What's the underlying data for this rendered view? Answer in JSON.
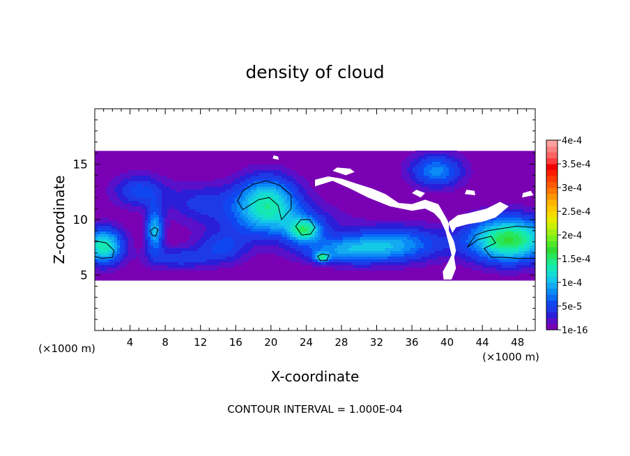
{
  "chart_data": {
    "type": "heatmap",
    "title": "density of cloud",
    "xlabel": "X-coordinate",
    "ylabel": "Z-coordinate",
    "x_unit": "(×1000 m)",
    "z_unit": "(×1000 m)",
    "xlim": [
      0,
      50
    ],
    "ylim": [
      0,
      20
    ],
    "x_ticks": [
      4,
      8,
      12,
      16,
      20,
      24,
      28,
      32,
      36,
      40,
      44,
      48
    ],
    "y_ticks": [
      5,
      10,
      15
    ],
    "footer": "CONTOUR INTERVAL = 1.000E-04",
    "colorbar": {
      "labels": [
        "1e-16",
        "5e-5",
        "1e-4",
        "1.5e-4",
        "2e-4",
        "2.5e-4",
        "3e-4",
        "3.5e-4",
        "4e-4"
      ],
      "min": 0,
      "max": 0.0004,
      "bins": [
        {
          "from": 0,
          "to": 1.25e-05,
          "color": "#7a00b4"
        },
        {
          "from": 1.25e-05,
          "to": 2.5e-05,
          "color": "#5a10c8"
        },
        {
          "from": 2.5e-05,
          "to": 3.75e-05,
          "color": "#2a1ed8"
        },
        {
          "from": 3.75e-05,
          "to": 5e-05,
          "color": "#1e3ae6"
        },
        {
          "from": 5e-05,
          "to": 6.25e-05,
          "color": "#1046f0"
        },
        {
          "from": 6.25e-05,
          "to": 7.5e-05,
          "color": "#0a6cf5"
        },
        {
          "from": 7.5e-05,
          "to": 8.75e-05,
          "color": "#0a8cf6"
        },
        {
          "from": 8.75e-05,
          "to": 0.0001,
          "color": "#14aaf2"
        },
        {
          "from": 0.0001,
          "to": 0.0001125,
          "color": "#14c8e8"
        },
        {
          "from": 0.0001125,
          "to": 0.000125,
          "color": "#14dcd2"
        },
        {
          "from": 0.000125,
          "to": 0.0001375,
          "color": "#14e8b4"
        },
        {
          "from": 0.0001375,
          "to": 0.00015,
          "color": "#1eeb8c"
        },
        {
          "from": 0.00015,
          "to": 0.0001625,
          "color": "#28e65a"
        },
        {
          "from": 0.0001625,
          "to": 0.000175,
          "color": "#32dc32"
        },
        {
          "from": 0.000175,
          "to": 0.0001875,
          "color": "#50e628"
        },
        {
          "from": 0.0001875,
          "to": 0.0002,
          "color": "#78f01e"
        },
        {
          "from": 0.0002,
          "to": 0.0002125,
          "color": "#a0f014"
        },
        {
          "from": 0.0002125,
          "to": 0.000225,
          "color": "#c8f00a"
        },
        {
          "from": 0.000225,
          "to": 0.0002375,
          "color": "#e6eb00"
        },
        {
          "from": 0.0002375,
          "to": 0.00025,
          "color": "#f5dc00"
        },
        {
          "from": 0.00025,
          "to": 0.0002625,
          "color": "#ffc800"
        },
        {
          "from": 0.0002625,
          "to": 0.000275,
          "color": "#ffb400"
        },
        {
          "from": 0.000275,
          "to": 0.0002875,
          "color": "#ff9600"
        },
        {
          "from": 0.0002875,
          "to": 0.0003,
          "color": "#ff7800"
        },
        {
          "from": 0.0003,
          "to": 0.0003125,
          "color": "#ff5a00"
        },
        {
          "from": 0.0003125,
          "to": 0.000325,
          "color": "#ff3c00"
        },
        {
          "from": 0.000325,
          "to": 0.0003375,
          "color": "#ff1e00"
        },
        {
          "from": 0.0003375,
          "to": 0.00035,
          "color": "#f00000"
        },
        {
          "from": 0.00035,
          "to": 0.0003625,
          "color": "#ff3c3c"
        },
        {
          "from": 0.0003625,
          "to": 0.000375,
          "color": "#ff6464"
        },
        {
          "from": 0.000375,
          "to": 0.0003875,
          "color": "#ff8282"
        },
        {
          "from": 0.0003875,
          "to": 0.0004,
          "color": "#ffa0a0"
        }
      ]
    },
    "field": {
      "domain_x": [
        0,
        50
      ],
      "domain_z": [
        4.5,
        16.2
      ],
      "background_color": "#7a00b4",
      "blobs": [
        {
          "x": 19.5,
          "z": 11.8,
          "rx": 3.5,
          "rz": 2.2,
          "peak": 0.000115
        },
        {
          "x": 21.0,
          "z": 9.8,
          "rx": 6.0,
          "rz": 1.8,
          "peak": 6e-05
        },
        {
          "x": 23.8,
          "z": 9.0,
          "rx": 1.8,
          "rz": 1.0,
          "peak": 0.000105
        },
        {
          "x": 38.8,
          "z": 14.4,
          "rx": 3.0,
          "rz": 1.5,
          "peak": 8e-05
        },
        {
          "x": 47.0,
          "z": 8.2,
          "rx": 4.5,
          "rz": 2.0,
          "peak": 0.000165
        },
        {
          "x": 1.0,
          "z": 7.6,
          "rx": 2.2,
          "rz": 1.6,
          "peak": 0.000135
        },
        {
          "x": 6.8,
          "z": 9.0,
          "rx": 1.0,
          "rz": 2.0,
          "peak": 0.0001
        },
        {
          "x": 5.0,
          "z": 12.6,
          "rx": 3.0,
          "rz": 1.5,
          "peak": 5.5e-05
        },
        {
          "x": 34.0,
          "z": 7.8,
          "rx": 5.5,
          "rz": 1.6,
          "peak": 8.5e-05
        },
        {
          "x": 28.0,
          "z": 7.2,
          "rx": 5.0,
          "rz": 1.2,
          "peak": 7e-05
        },
        {
          "x": 25.8,
          "z": 6.6,
          "rx": 0.8,
          "rz": 0.4,
          "peak": 0.0001
        },
        {
          "x": 12.0,
          "z": 11.5,
          "rx": 4.0,
          "rz": 1.8,
          "peak": 4e-05
        },
        {
          "x": 14.5,
          "z": 7.5,
          "rx": 3.0,
          "rz": 1.5,
          "peak": 5e-05
        },
        {
          "x": 9.5,
          "z": 6.5,
          "rx": 3.5,
          "rz": 1.0,
          "peak": 4.5e-05
        }
      ],
      "gaps": [
        [
          [
            25.0,
            13.0
          ],
          [
            27.0,
            13.5
          ],
          [
            29.0,
            12.8
          ],
          [
            31.0,
            12.0
          ],
          [
            33.5,
            11.2
          ],
          [
            36.0,
            10.8
          ],
          [
            37.5,
            11.0
          ],
          [
            38.5,
            10.6
          ],
          [
            39.2,
            10.0
          ],
          [
            39.8,
            9.0
          ],
          [
            40.2,
            7.8
          ],
          [
            40.5,
            6.8
          ],
          [
            40.0,
            6.0
          ],
          [
            39.5,
            5.3
          ],
          [
            39.6,
            4.6
          ],
          [
            40.5,
            4.6
          ],
          [
            41.0,
            5.6
          ],
          [
            40.8,
            6.6
          ],
          [
            41.0,
            7.2
          ],
          [
            40.8,
            8.0
          ],
          [
            40.2,
            9.0
          ],
          [
            40.2,
            9.8
          ],
          [
            41.2,
            10.4
          ],
          [
            42.5,
            10.6
          ],
          [
            44.5,
            11.0
          ],
          [
            46.0,
            11.6
          ],
          [
            47.0,
            11.2
          ],
          [
            45.5,
            10.2
          ],
          [
            44.0,
            9.8
          ],
          [
            42.4,
            9.6
          ],
          [
            41.0,
            9.3
          ],
          [
            40.6,
            8.8
          ],
          [
            40.0,
            10.0
          ],
          [
            39.0,
            11.4
          ],
          [
            37.5,
            11.8
          ],
          [
            36.0,
            11.4
          ],
          [
            34.5,
            11.5
          ],
          [
            33.0,
            12.3
          ],
          [
            31.5,
            12.8
          ],
          [
            29.5,
            13.3
          ],
          [
            28.0,
            13.7
          ],
          [
            26.5,
            13.9
          ],
          [
            25.0,
            13.6
          ]
        ],
        [
          [
            27.0,
            14.4
          ],
          [
            28.5,
            14.0
          ],
          [
            29.5,
            14.3
          ],
          [
            29.0,
            14.6
          ],
          [
            27.5,
            14.7
          ]
        ],
        [
          [
            20.2,
            15.5
          ],
          [
            20.9,
            15.4
          ],
          [
            20.8,
            15.7
          ],
          [
            20.3,
            15.8
          ]
        ],
        [
          [
            36.0,
            12.4
          ],
          [
            37.0,
            12.0
          ],
          [
            37.5,
            12.4
          ],
          [
            36.5,
            12.7
          ]
        ],
        [
          [
            42.0,
            12.3
          ],
          [
            43.2,
            12.2
          ],
          [
            43.1,
            12.6
          ],
          [
            42.2,
            12.7
          ]
        ],
        [
          [
            48.5,
            12.0
          ],
          [
            49.8,
            12.2
          ],
          [
            49.5,
            12.6
          ],
          [
            48.6,
            12.4
          ]
        ]
      ],
      "contours": [
        [
          [
            16.2,
            11.7
          ],
          [
            16.8,
            12.6
          ],
          [
            18.0,
            13.2
          ],
          [
            19.5,
            13.5
          ],
          [
            21.0,
            13.1
          ],
          [
            22.3,
            12.2
          ],
          [
            22.3,
            11.0
          ],
          [
            21.2,
            10.0
          ],
          [
            20.8,
            11.3
          ],
          [
            19.8,
            12.0
          ],
          [
            18.6,
            11.8
          ],
          [
            17.6,
            11.3
          ],
          [
            16.8,
            10.9
          ]
        ],
        [
          [
            22.8,
            9.4
          ],
          [
            23.4,
            10.0
          ],
          [
            24.4,
            10.0
          ],
          [
            25.0,
            9.3
          ],
          [
            24.5,
            8.7
          ],
          [
            23.5,
            8.6
          ]
        ],
        [
          [
            25.3,
            6.7
          ],
          [
            25.8,
            6.9
          ],
          [
            26.6,
            6.8
          ],
          [
            26.3,
            6.3
          ],
          [
            25.6,
            6.3
          ]
        ],
        [
          [
            6.3,
            9.0
          ],
          [
            6.8,
            9.3
          ],
          [
            7.2,
            9.1
          ],
          [
            6.9,
            8.5
          ],
          [
            6.5,
            8.6
          ]
        ],
        [
          [
            0,
            8.1
          ],
          [
            1.3,
            7.9
          ],
          [
            2.2,
            7.2
          ],
          [
            2.0,
            6.6
          ],
          [
            0.8,
            6.5
          ],
          [
            0,
            6.7
          ]
        ],
        [
          [
            42.3,
            7.5
          ],
          [
            43.2,
            8.6
          ],
          [
            44.6,
            9.0
          ],
          [
            46.2,
            9.2
          ],
          [
            47.8,
            9.4
          ],
          [
            50,
            9.3
          ],
          [
            50,
            6.5
          ],
          [
            48.0,
            6.5
          ],
          [
            46.5,
            6.6
          ],
          [
            45.0,
            6.6
          ],
          [
            44.2,
            7.4
          ],
          [
            45.5,
            7.9
          ],
          [
            45.0,
            8.5
          ],
          [
            43.5,
            8.2
          ]
        ]
      ]
    }
  }
}
